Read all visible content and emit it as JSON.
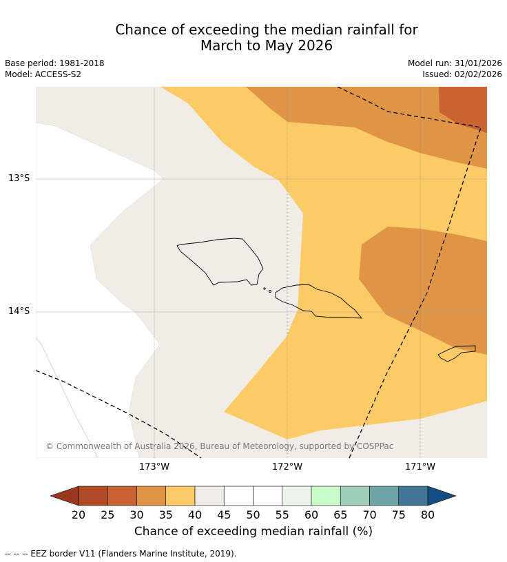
{
  "title": {
    "line1": "Chance of exceeding the median rainfall for",
    "line2": "March to May 2026"
  },
  "meta": {
    "base_period": "Base period: 1981-2018",
    "model": "Model: ACCESS-S2",
    "model_run": "Model run: 31/01/2026",
    "issued": "Issued: 02/02/2026"
  },
  "map": {
    "lat_labels": [
      "13°S",
      "14°S"
    ],
    "lon_labels": [
      "173°W",
      "172°W",
      "171°W"
    ],
    "copyright": "© Commonwealth of Australia 2026, Bureau of Meteorology, supported by COSPPac",
    "region_categories": [
      "25-30",
      "30-35",
      "35-40",
      "40-45",
      "45-50"
    ]
  },
  "colorbar": {
    "ticks": [
      "20",
      "25",
      "30",
      "35",
      "40",
      "45",
      "50",
      "55",
      "60",
      "65",
      "70",
      "75",
      "80"
    ],
    "colors": [
      "#b24b27",
      "#c96331",
      "#e09445",
      "#fdcb66",
      "#f1ece6",
      "#ffffff",
      "#ffffff",
      "#ebf5ea",
      "#c9fcc9",
      "#9dcfb8",
      "#6fa4a7",
      "#417696"
    ],
    "under_color": "#983821",
    "over_color": "#154d85",
    "label": "Chance of exceeding median rainfall (%)"
  },
  "legend": {
    "eez": "--  --  -- EEZ border V11 (Flanders Marine Institute, 2019)."
  }
}
